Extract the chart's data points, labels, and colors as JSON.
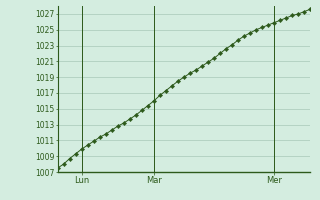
{
  "title": "",
  "y_values": [
    1007.5,
    1008.0,
    1008.7,
    1009.3,
    1009.9,
    1010.4,
    1010.9,
    1011.4,
    1011.8,
    1012.3,
    1012.8,
    1013.2,
    1013.7,
    1014.2,
    1014.8,
    1015.4,
    1016.0,
    1016.7,
    1017.3,
    1017.9,
    1018.5,
    1019.0,
    1019.5,
    1019.9,
    1020.4,
    1020.9,
    1021.4,
    1022.0,
    1022.6,
    1023.1,
    1023.7,
    1024.2,
    1024.6,
    1025.0,
    1025.3,
    1025.6,
    1025.9,
    1026.2,
    1026.5,
    1026.8,
    1027.0,
    1027.3,
    1027.6
  ],
  "x_tick_positions": [
    4,
    16,
    36
  ],
  "x_tick_labels": [
    "Lun",
    "Mar",
    "Mer"
  ],
  "vline_positions": [
    4,
    16,
    36
  ],
  "y_min": 1007,
  "y_max": 1028,
  "y_ticks": [
    1007,
    1009,
    1011,
    1013,
    1015,
    1017,
    1019,
    1021,
    1023,
    1025,
    1027
  ],
  "line_color": "#2d5a1b",
  "marker_color": "#2d5a1b",
  "bg_color": "#d4ede0",
  "grid_color": "#a8c8b8",
  "axis_color": "#2d5a1b",
  "tick_label_color": "#2d5a1b",
  "n_points": 43
}
